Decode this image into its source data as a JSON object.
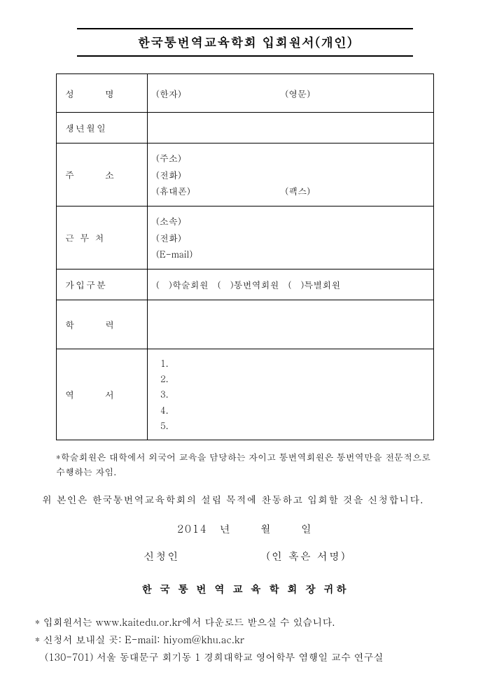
{
  "title": "한국통번역교육학회 입회원서(개인)",
  "form": {
    "name": {
      "label": "성　　명",
      "hanja": "(한자)",
      "english": "(영문)"
    },
    "birth": {
      "label": "생년월일"
    },
    "address": {
      "label": "주　　소",
      "addr": "(주소)",
      "tel": "(전화)",
      "mobile": "(휴대폰)",
      "fax": "(팩스)"
    },
    "work": {
      "label": "근 무 처",
      "org": "(소속)",
      "tel": "(전화)",
      "email": "(E-mail)"
    },
    "membership": {
      "label": "가입구분",
      "options": "(　)학술회원　(　)통번역회원　(　)특별회원"
    },
    "education": {
      "label": "학　　력"
    },
    "career": {
      "label": "역　　서",
      "items": [
        "1.",
        "2.",
        "3.",
        "4.",
        "5."
      ]
    }
  },
  "note_prefix": "*",
  "note": "학술회원은 대학에서 외국어 교육을 담당하는 자이고 통번역회원은 통번역만을 전문적으로 수행하는 자임.",
  "declaration": "위 본인은 한국통번역교육학회의 설립 목적에 찬동하고 입회할 것을 신청합니다.",
  "date": {
    "year": "2014　년",
    "month": "월",
    "day": "일"
  },
  "signer_label": "신청인",
  "sign_hint": "(인 혹은 서명)",
  "addressee": "한 국 통 번 역 교 육 학 회 장 귀하",
  "footer": {
    "line1": "* 입회원서는 www.kaitedu.or.kr에서 다운로드 받으실 수 있습니다.",
    "line2": "* 신청서 보내실 곳: E-mail: hiyom@khu.ac.kr",
    "line3": "　(130-701) 서울 동대문구 회기동 1 경희대학교 영어학부 염행일 교수 연구실"
  }
}
